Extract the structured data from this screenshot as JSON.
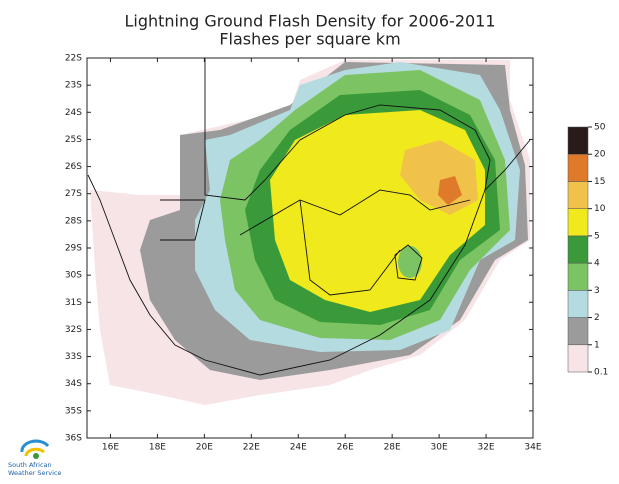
{
  "header": {
    "title": "Lightning Ground Flash Density for 2006-2011",
    "subtitle": "Flashes per square km"
  },
  "map": {
    "xlim": [
      15,
      34
    ],
    "ylim": [
      -36,
      -22
    ],
    "xticks": [
      {
        "value": 16,
        "label": "16E"
      },
      {
        "value": 18,
        "label": "18E"
      },
      {
        "value": 20,
        "label": "20E"
      },
      {
        "value": 22,
        "label": "22E"
      },
      {
        "value": 24,
        "label": "24E"
      },
      {
        "value": 26,
        "label": "26E"
      },
      {
        "value": 28,
        "label": "28E"
      },
      {
        "value": 30,
        "label": "30E"
      },
      {
        "value": 32,
        "label": "32E"
      },
      {
        "value": 34,
        "label": "34E"
      }
    ],
    "yticks": [
      {
        "value": -22,
        "label": "22S"
      },
      {
        "value": -23,
        "label": "23S"
      },
      {
        "value": -24,
        "label": "24S"
      },
      {
        "value": -25,
        "label": "25S"
      },
      {
        "value": -26,
        "label": "26S"
      },
      {
        "value": -27,
        "label": "27S"
      },
      {
        "value": -28,
        "label": "28S"
      },
      {
        "value": -29,
        "label": "29S"
      },
      {
        "value": -30,
        "label": "30S"
      },
      {
        "value": -31,
        "label": "31S"
      },
      {
        "value": -32,
        "label": "32S"
      },
      {
        "value": -33,
        "label": "33S"
      },
      {
        "value": -34,
        "label": "34S"
      },
      {
        "value": -35,
        "label": "35S"
      },
      {
        "value": -36,
        "label": "36S"
      }
    ]
  },
  "colorbar": {
    "levels": [
      0.1,
      1,
      2,
      3,
      4,
      5,
      10,
      15,
      20,
      50
    ],
    "colors": [
      "#f6e4e6",
      "#9b9b9b",
      "#b4dce0",
      "#7cc363",
      "#3a9a3a",
      "#f0ea1c",
      "#f1c24a",
      "#de7a2a",
      "#2a1b1b"
    ]
  },
  "logo": {
    "line1": "South African",
    "line2": "Weather Service"
  }
}
